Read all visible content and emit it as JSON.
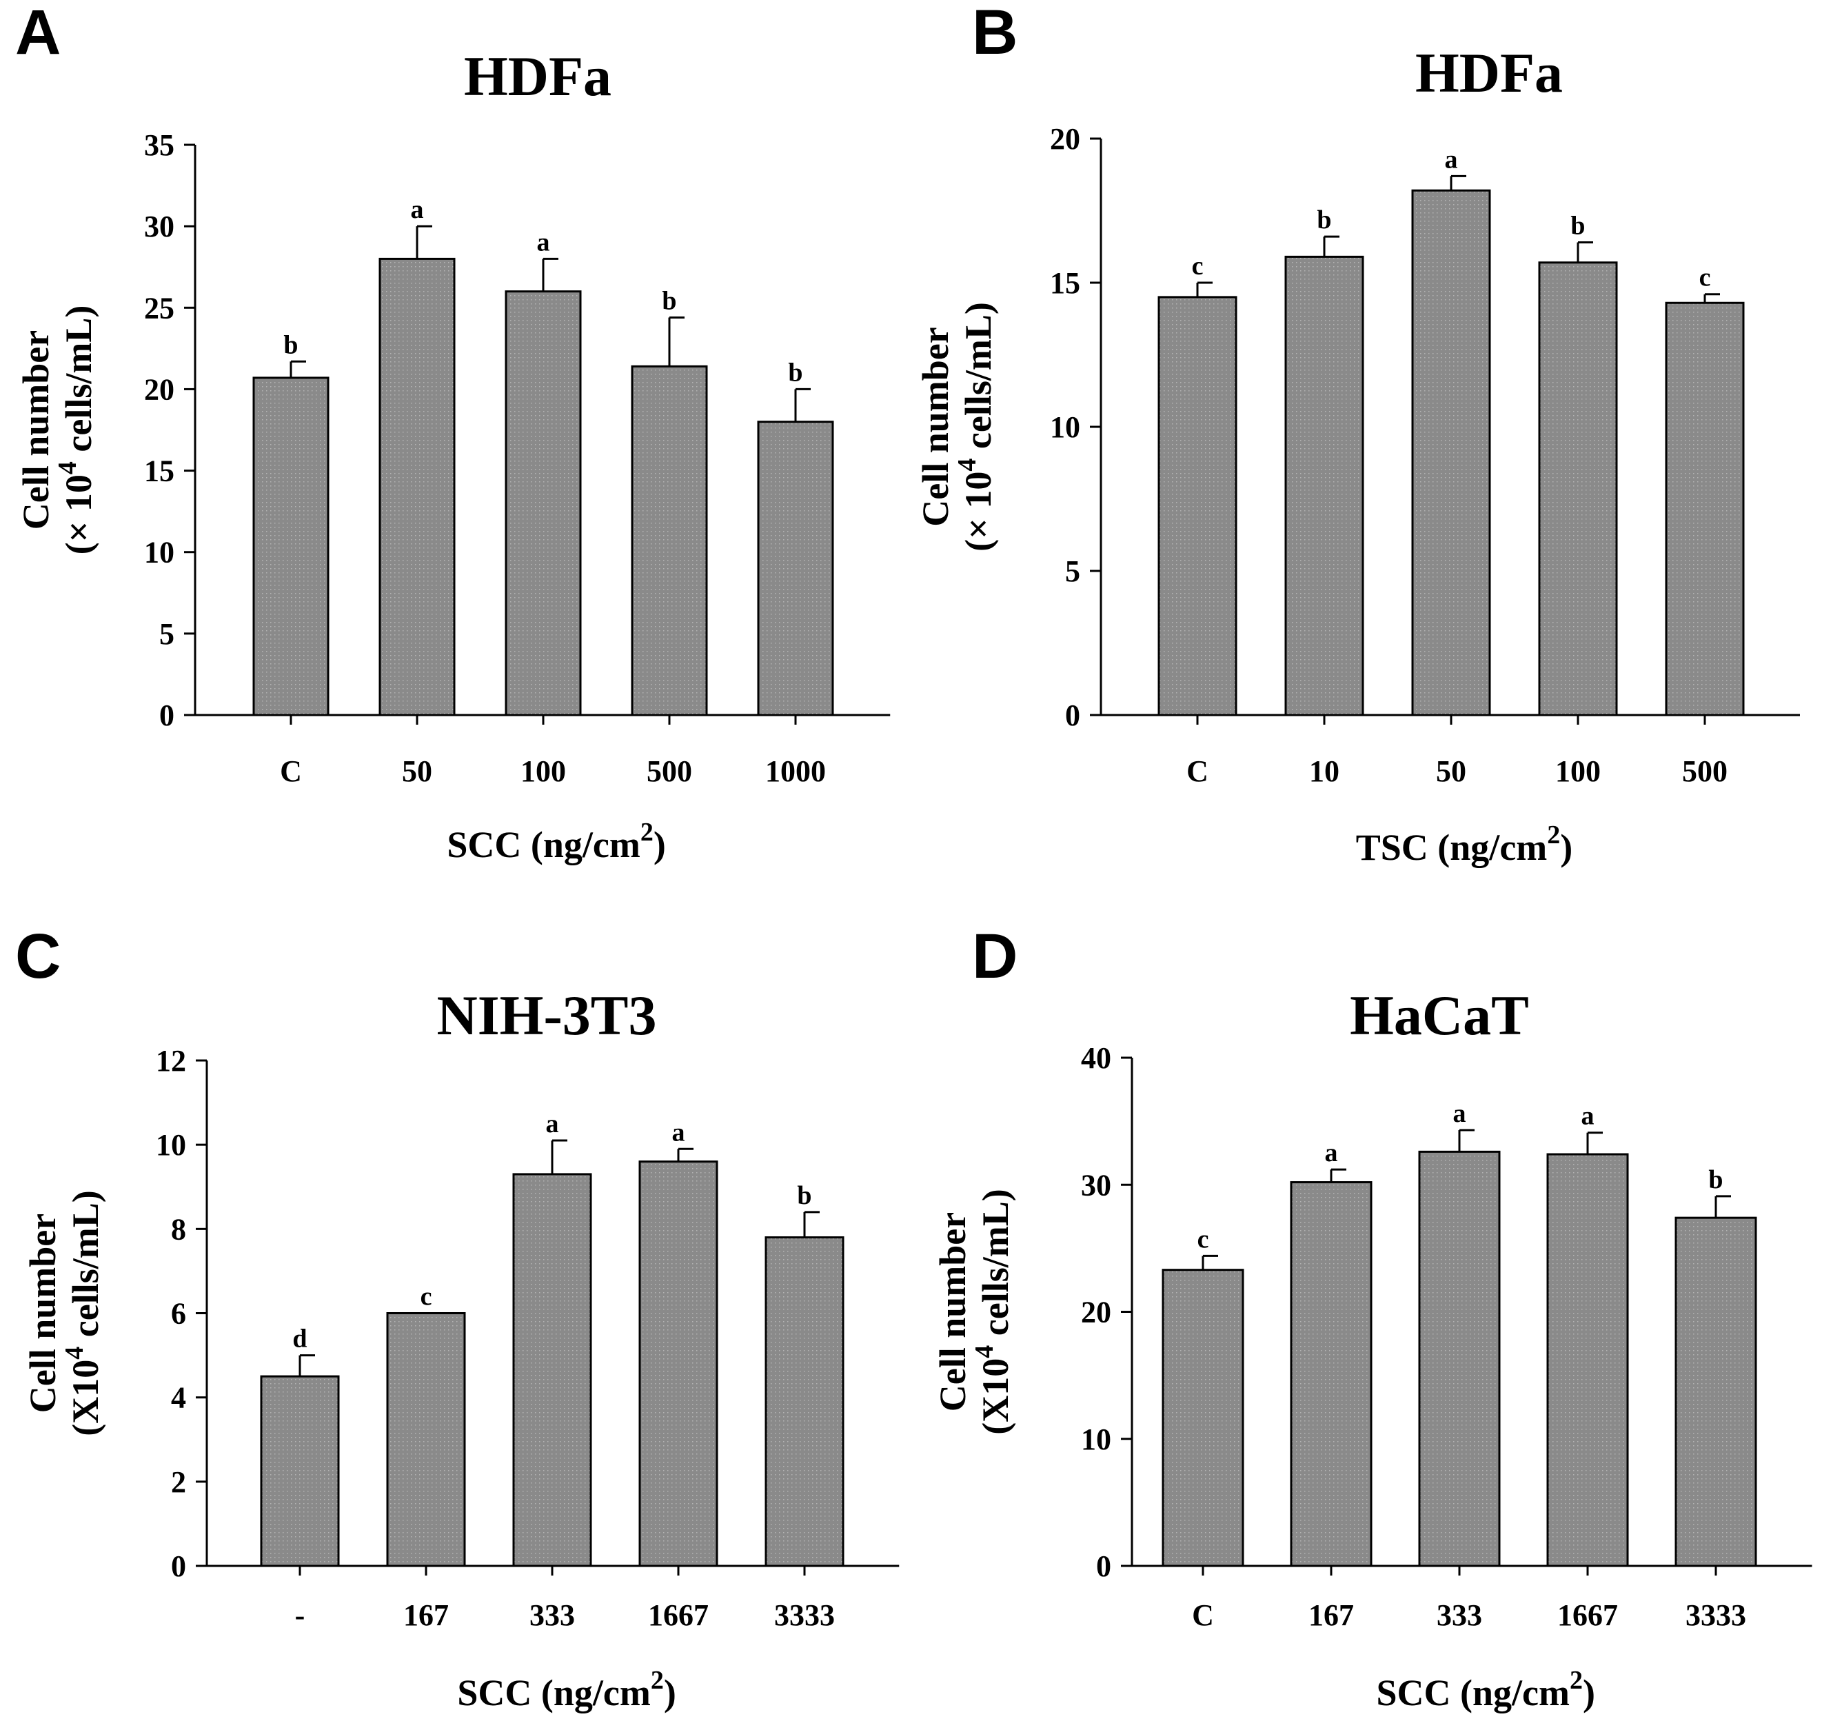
{
  "figure": {
    "bar_color": "#8a8a8a",
    "axis_color": "#000000"
  },
  "chart_data": [
    {
      "type": "bar",
      "panel": "A",
      "title": "HDFa",
      "categories": [
        "C",
        "50",
        "100",
        "500",
        "1000"
      ],
      "values": [
        20.7,
        28.0,
        26.0,
        21.4,
        18.0
      ],
      "errors": [
        1.0,
        2.0,
        2.0,
        3.0,
        2.0
      ],
      "significance": [
        "b",
        "a",
        "a",
        "b",
        "b"
      ],
      "ylim": [
        0,
        35
      ],
      "yticks": [
        0,
        5,
        10,
        15,
        20,
        25,
        30,
        35
      ],
      "ylabel_line1": "Cell number",
      "ylabel_line2_prefix": "(× 10",
      "ylabel_line2_sup": "4",
      "ylabel_line2_suffix": "  cells/mL)",
      "xlabel": "SCC (ng/cm",
      "xlabel_sup": "2",
      "xlabel_suffix": ")"
    },
    {
      "type": "bar",
      "panel": "B",
      "title": "HDFa",
      "categories": [
        "C",
        "10",
        "50",
        "100",
        "500"
      ],
      "values": [
        14.5,
        15.9,
        18.2,
        15.7,
        14.3
      ],
      "errors": [
        0.5,
        0.7,
        0.5,
        0.7,
        0.3
      ],
      "significance": [
        "c",
        "b",
        "a",
        "b",
        "c"
      ],
      "ylim": [
        0,
        20
      ],
      "yticks": [
        0,
        5,
        10,
        15,
        20
      ],
      "ylabel_line1": "Cell number",
      "ylabel_line2_prefix": "(× 10",
      "ylabel_line2_sup": "4",
      "ylabel_line2_suffix": "  cells/mL)",
      "xlabel": "TSC (ng/cm",
      "xlabel_sup": "2",
      "xlabel_suffix": ")"
    },
    {
      "type": "bar",
      "panel": "C",
      "title": "NIH-3T3",
      "categories": [
        "-",
        "167",
        "333",
        "1667",
        "3333"
      ],
      "values": [
        4.5,
        6.0,
        9.3,
        9.6,
        7.8
      ],
      "errors": [
        0.5,
        0.0,
        0.8,
        0.3,
        0.6
      ],
      "significance": [
        "d",
        "c",
        "a",
        "a",
        "b"
      ],
      "ylim": [
        0,
        12
      ],
      "yticks": [
        0,
        2,
        4,
        6,
        8,
        10,
        12
      ],
      "ylabel_line1": "Cell number",
      "ylabel_line2_prefix": "(X10",
      "ylabel_line2_sup": "4",
      "ylabel_line2_suffix": "  cells/mL)",
      "xlabel": "SCC (ng/cm",
      "xlabel_sup": "2",
      "xlabel_suffix": ")"
    },
    {
      "type": "bar",
      "panel": "D",
      "title": "HaCaT",
      "categories": [
        "C",
        "167",
        "333",
        "1667",
        "3333"
      ],
      "values": [
        23.3,
        30.2,
        32.6,
        32.4,
        27.4
      ],
      "errors": [
        1.1,
        1.0,
        1.7,
        1.7,
        1.7
      ],
      "significance": [
        "c",
        "a",
        "a",
        "a",
        "b"
      ],
      "ylim": [
        0,
        40
      ],
      "yticks": [
        0,
        10,
        20,
        30,
        40
      ],
      "ylabel_line1": "Cell number",
      "ylabel_line2_prefix": "(X10",
      "ylabel_line2_sup": "4",
      "ylabel_line2_suffix": "  cells/mL)",
      "xlabel": "SCC (ng/cm",
      "xlabel_sup": "2",
      "xlabel_suffix": ")"
    }
  ]
}
